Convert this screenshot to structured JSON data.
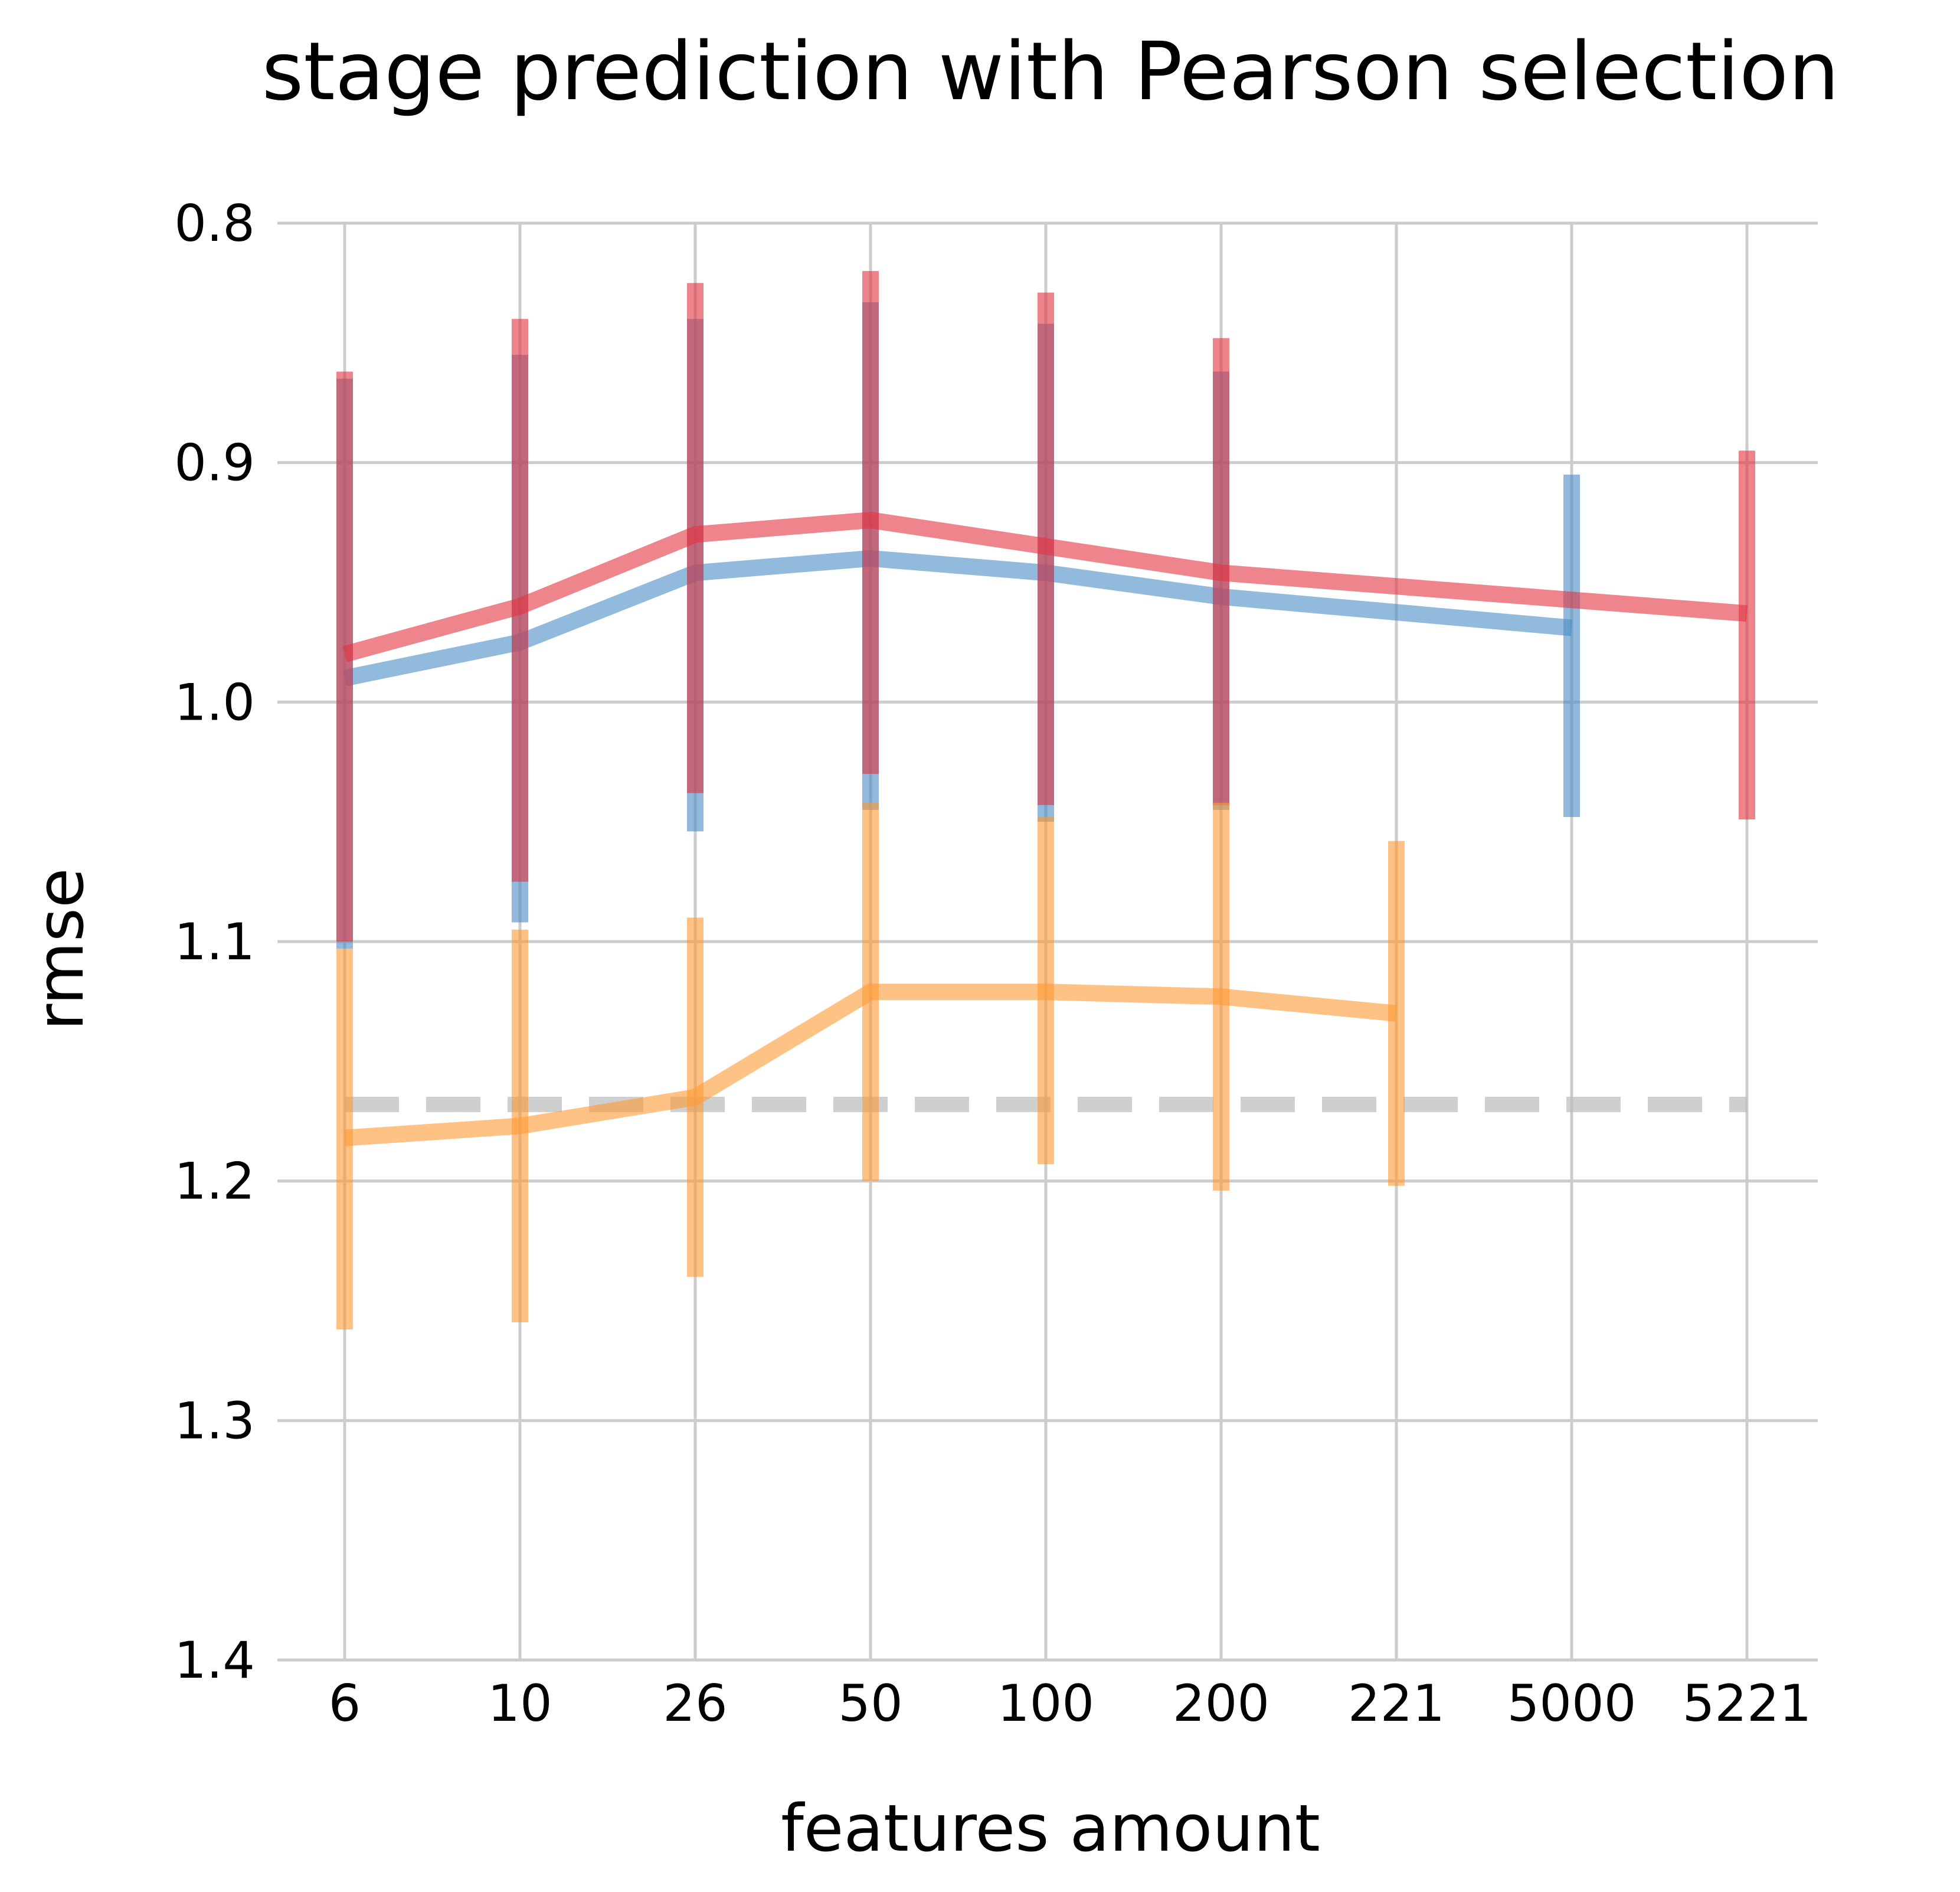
{
  "chart_data": {
    "type": "line",
    "title": "stage prediction with Pearson selection",
    "xlabel": "features amount",
    "ylabel": "rmse",
    "x_ticks": [
      "6",
      "10",
      "26",
      "50",
      "100",
      "200",
      "221",
      "5000",
      "5221"
    ],
    "y_ticks": [
      "0.8",
      "0.9",
      "1.0",
      "1.1",
      "1.2",
      "1.3",
      "1.4"
    ],
    "ylim": [
      0.8,
      1.4
    ],
    "y_inverted": true,
    "grid": true,
    "legend": "none",
    "baseline": {
      "value": 1.168,
      "style": "dashed",
      "color": "#bbbbbb"
    },
    "series": [
      {
        "color": "#4a8cc4",
        "x": [
          "6",
          "10",
          "26",
          "50",
          "100",
          "200",
          "5000"
        ],
        "y": [
          0.99,
          0.975,
          0.946,
          0.94,
          0.946,
          0.956,
          0.969
        ],
        "err_low": [
          0.865,
          0.855,
          0.84,
          0.833,
          0.842,
          0.862,
          0.905
        ],
        "err_high": [
          1.103,
          1.092,
          1.054,
          1.045,
          1.05,
          1.045,
          1.048
        ]
      },
      {
        "color": "#e3333f",
        "x": [
          "6",
          "10",
          "26",
          "50",
          "100",
          "200",
          "5221"
        ],
        "y": [
          0.98,
          0.96,
          0.93,
          0.924,
          0.935,
          0.946,
          0.963
        ],
        "err_low": [
          0.862,
          0.84,
          0.825,
          0.82,
          0.829,
          0.848,
          0.895
        ],
        "err_high": [
          1.1,
          1.075,
          1.038,
          1.03,
          1.043,
          1.043,
          1.049
        ]
      },
      {
        "color": "#ff9933",
        "x": [
          "6",
          "10",
          "26",
          "50",
          "100",
          "200",
          "221"
        ],
        "y": [
          1.182,
          1.177,
          1.165,
          1.121,
          1.121,
          1.123,
          1.13
        ],
        "err_low": [
          1.103,
          1.095,
          1.09,
          1.042,
          1.048,
          1.042,
          1.058
        ],
        "err_high": [
          1.262,
          1.259,
          1.24,
          1.2,
          1.193,
          1.204,
          1.202
        ]
      }
    ]
  }
}
